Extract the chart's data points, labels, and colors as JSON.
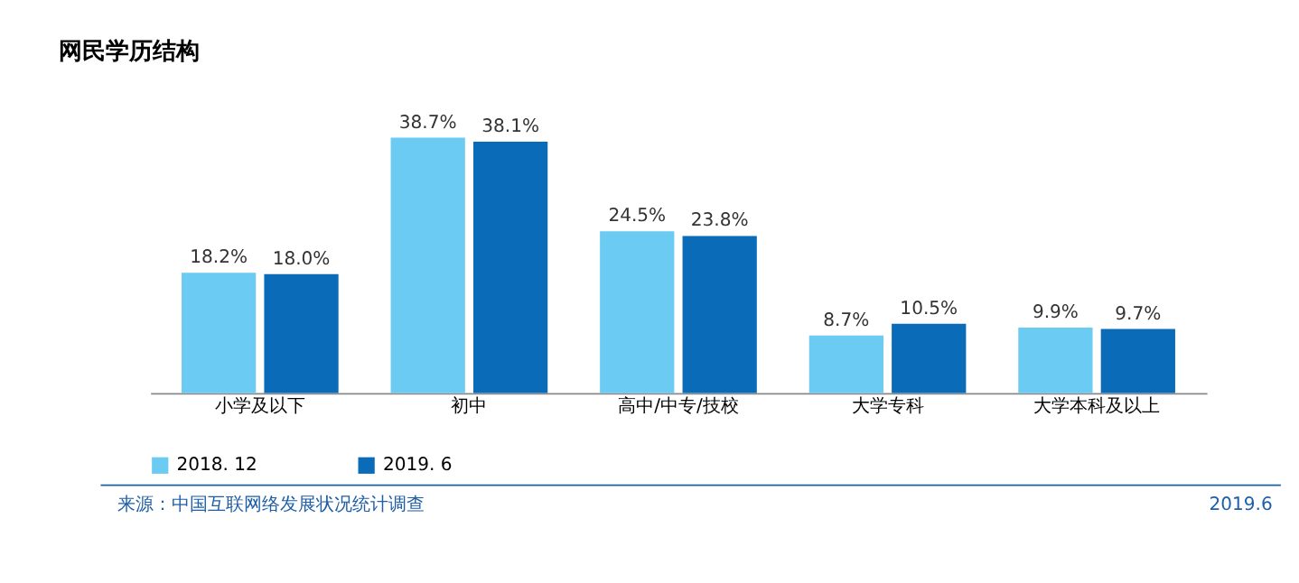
{
  "chart_data": {
    "type": "bar",
    "title": "网民学历结构",
    "categories": [
      "小学及以下",
      "初中",
      "高中/中专/技校",
      "大学专科",
      "大学本科及以上"
    ],
    "series": [
      {
        "name": "2018. 12",
        "color": "#6ccbf3",
        "values": [
          18.2,
          38.7,
          24.5,
          8.7,
          9.9
        ],
        "value_labels": [
          "18.2%",
          "38.7%",
          "24.5%",
          "8.7%",
          "9.9%"
        ]
      },
      {
        "name": "2019. 6",
        "color": "#0a6cb8",
        "values": [
          18.0,
          38.1,
          23.8,
          10.5,
          9.7
        ],
        "value_labels": [
          "18.0%",
          "38.1%",
          "23.8%",
          "10.5%",
          "9.7%"
        ]
      }
    ],
    "legend": "bottom",
    "grid": false,
    "annotations": [
      "来源：中国互联网络发展状况统计调查",
      "2019.6"
    ]
  }
}
